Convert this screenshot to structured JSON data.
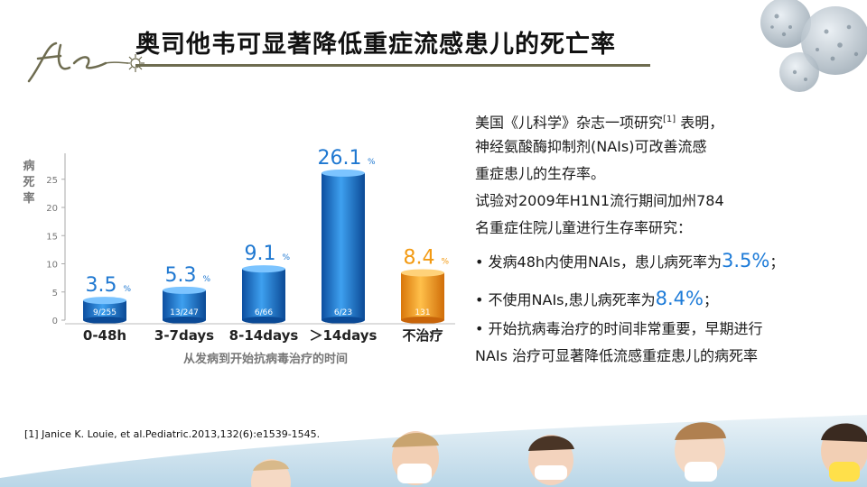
{
  "title": "奥司他韦可显著降低重症流感患儿的死亡率",
  "chart_data": {
    "type": "bar",
    "ylabel": "病死率",
    "xlabel": "从发病到开始抗病毒治疗的时间",
    "ylim": [
      0,
      28
    ],
    "yticks": [
      0,
      5,
      10,
      15,
      20,
      25
    ],
    "categories": [
      "0-48h",
      "3-7days",
      "8-14days",
      "＞14days",
      "不治疗"
    ],
    "values": [
      3.5,
      5.3,
      9.1,
      26.1,
      8.4
    ],
    "value_labels": [
      "3.5",
      "5.3",
      "9.1",
      "26.1",
      "8.4"
    ],
    "value_unit": "%",
    "counts": [
      "9/255",
      "13/247",
      "6/66",
      "6/23",
      "131"
    ],
    "colors": [
      "#1f78d1",
      "#1f78d1",
      "#1f78d1",
      "#1f78d1",
      "#f39a12"
    ],
    "grid": false
  },
  "text": {
    "p1_a": "美国《儿科学》杂志一项研究",
    "p1_sup": "[1]",
    "p1_b": " 表明，",
    "p2": "神经氨酸酶抑制剂(NAIs)可改善流感",
    "p3": "重症患儿的生存率。",
    "p4": "试验对2009年H1N1流行期间加州784",
    "p5": "名重症住院儿童进行生存率研究：",
    "b1_a": "• 发病48h内使用NAIs，患儿病死率为",
    "b1_val": "3.5%",
    "b1_end": "；",
    "b2_a": "• 不使用NAIs,患儿病死率为",
    "b2_val": "8.4%",
    "b2_end": "；",
    "b3": "• 开始抗病毒治疗的时间非常重要，早期进行",
    "b4": "NAIs 治疗可显著降低流感重症患儿的病死率"
  },
  "reference": "[1] Janice K. Louie, et al.Pediatric.2013,132(6):e1539-1545."
}
